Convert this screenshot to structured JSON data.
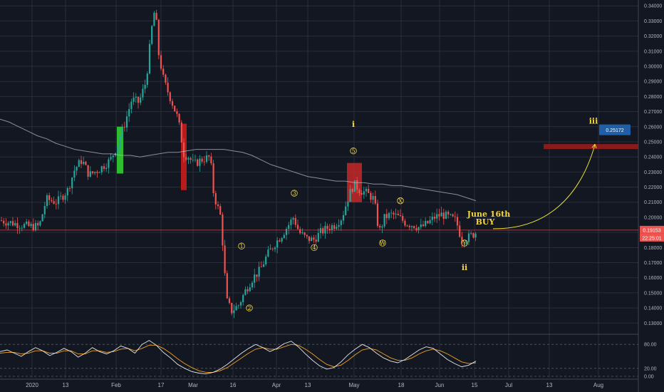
{
  "chart_data": {
    "type": "candlestick",
    "y_axis": {
      "ticks": [
        "0.34000",
        "0.33000",
        "0.32000",
        "0.31000",
        "0.30000",
        "0.29000",
        "0.28000",
        "0.27000",
        "0.26000",
        "0.25000",
        "0.24000",
        "0.23000",
        "0.22000",
        "0.21000",
        "0.20000",
        "0.19000",
        "0.18000",
        "0.17000",
        "0.16000",
        "0.15000",
        "0.14000",
        "0.13000"
      ],
      "range": [
        0.124,
        0.342
      ]
    },
    "x_axis": {
      "ticks": [
        "2020",
        "13",
        "Feb",
        "17",
        "Mar",
        "16",
        "Apr",
        "13",
        "May",
        "18",
        "Jun",
        "15",
        "Jul",
        "13",
        "Aug"
      ]
    },
    "current_price_label": "0.19153",
    "countdown_label": "22:25:01",
    "target_price_label": "0.25172",
    "moving_average": [
      0.265,
      0.263,
      0.26,
      0.257,
      0.254,
      0.252,
      0.249,
      0.247,
      0.245,
      0.244,
      0.243,
      0.242,
      0.242,
      0.241,
      0.241,
      0.24,
      0.241,
      0.242,
      0.243,
      0.243,
      0.244,
      0.245,
      0.245,
      0.245,
      0.245,
      0.244,
      0.243,
      0.241,
      0.238,
      0.235,
      0.233,
      0.231,
      0.229,
      0.227,
      0.226,
      0.225,
      0.224,
      0.224,
      0.223,
      0.223,
      0.222,
      0.222,
      0.221,
      0.221,
      0.22,
      0.219,
      0.218,
      0.217,
      0.216,
      0.215,
      0.213,
      0.211
    ],
    "oscillator": {
      "ticks": [
        "80.00",
        "20.00",
        "0.00"
      ],
      "range": [
        0,
        100
      ],
      "fast": [
        62,
        66,
        58,
        50,
        62,
        72,
        64,
        52,
        60,
        70,
        62,
        48,
        58,
        72,
        62,
        56,
        64,
        76,
        70,
        58,
        80,
        90,
        78,
        60,
        46,
        30,
        20,
        12,
        8,
        6,
        10,
        18,
        30,
        44,
        58,
        70,
        80,
        72,
        62,
        70,
        82,
        88,
        74,
        56,
        40,
        26,
        18,
        22,
        36,
        54,
        68,
        80,
        72,
        58,
        46,
        38,
        34,
        42,
        54,
        66,
        74,
        70,
        56,
        42,
        32,
        24,
        28,
        38
      ],
      "slow": [
        58,
        60,
        60,
        56,
        58,
        64,
        64,
        58,
        58,
        64,
        64,
        56,
        56,
        64,
        64,
        60,
        62,
        68,
        70,
        64,
        70,
        78,
        78,
        70,
        58,
        44,
        32,
        22,
        14,
        10,
        10,
        14,
        22,
        34,
        46,
        58,
        68,
        72,
        68,
        68,
        74,
        80,
        78,
        68,
        56,
        42,
        30,
        24,
        28,
        40,
        54,
        66,
        70,
        66,
        56,
        46,
        40,
        40,
        46,
        56,
        64,
        68,
        64,
        56,
        46,
        36,
        32,
        34
      ]
    },
    "wave_labels": {
      "impulse": [
        "1",
        "2",
        "3",
        "4",
        "5"
      ],
      "corrective": [
        "W",
        "X",
        "Y"
      ],
      "degree": [
        "i",
        "ii",
        "iii"
      ]
    },
    "annotation": {
      "line1": "June 16th",
      "line2": "BUY"
    },
    "colors": {
      "up": "#26a69a",
      "down": "#ef5350",
      "ma": "#b2b5be",
      "osc_fast": "#e6e6e6",
      "osc_slow": "#f0a020",
      "wave": "#f5d742",
      "target_zone": "#8b1a1a",
      "target_tag": "#1e5fa8",
      "background": "#131722"
    }
  }
}
